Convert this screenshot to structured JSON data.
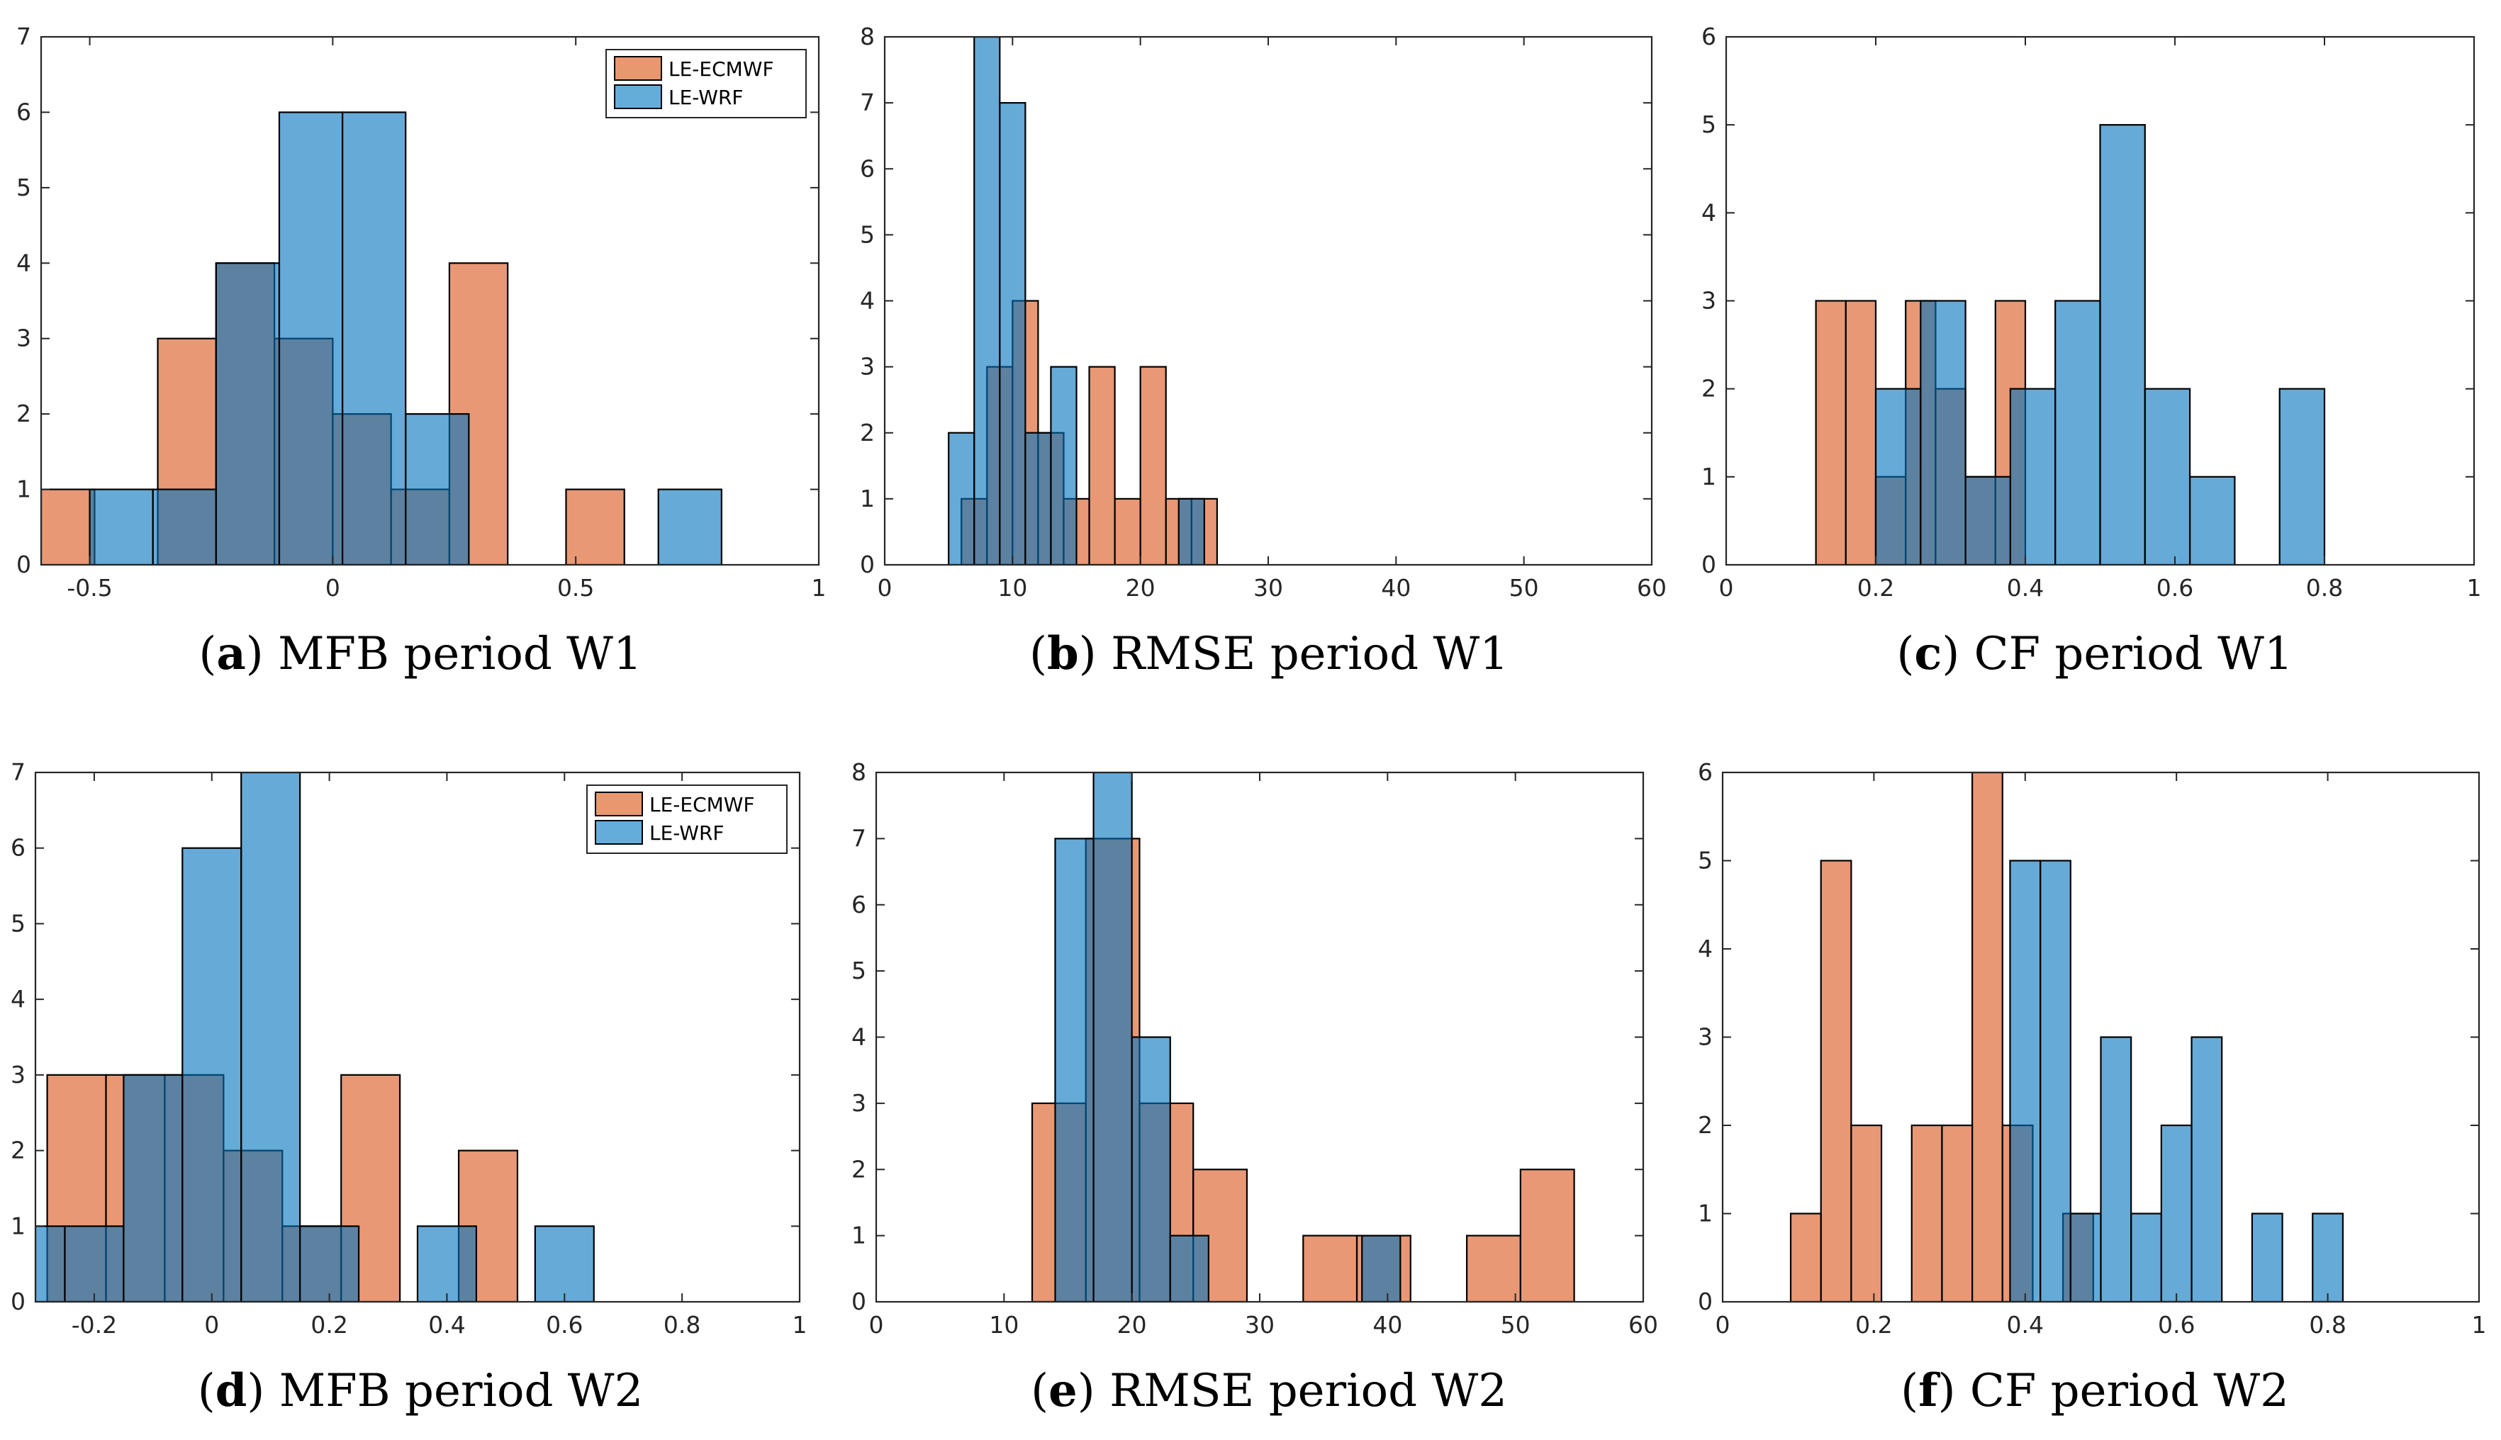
{
  "colors": {
    "ecmwf": "#d95319",
    "wrf": "#0072bd",
    "ecmwf_fill": "#e8976f",
    "wrf_fill": "#64addb",
    "overlap_fill": "#5b7f99",
    "edge": "#000000"
  },
  "legend": {
    "items": [
      "LE-ECMWF",
      "LE-WRF"
    ]
  },
  "panels": [
    {
      "id": "a",
      "caption": {
        "letter": "a",
        "text": "MFB period W1"
      },
      "legend": true,
      "chart_data": {
        "type": "histogram",
        "title": "MFB period W1",
        "xlim": [
          -0.6,
          1
        ],
        "ylim": [
          0,
          7
        ],
        "xticks": [
          -0.5,
          0,
          0.5,
          1
        ],
        "xtick_labels": [
          "-0.5",
          "0",
          "0.5",
          "1"
        ],
        "yticks": [
          0,
          1,
          2,
          3,
          4,
          5,
          6,
          7
        ],
        "ytick_labels": [
          "0",
          "1",
          "2",
          "3",
          "4",
          "5",
          "6",
          "7"
        ],
        "series": [
          {
            "name": "LE-ECMWF",
            "bins": [
              [
                -0.6,
                -0.49,
                1
              ],
              [
                -0.36,
                -0.24,
                3
              ],
              [
                -0.24,
                -0.12,
                4
              ],
              [
                -0.12,
                0.0,
                3
              ],
              [
                0.0,
                0.12,
                2
              ],
              [
                0.12,
                0.24,
                1
              ],
              [
                0.24,
                0.36,
                4
              ],
              [
                0.48,
                0.6,
                1
              ]
            ]
          },
          {
            "name": "LE-WRF",
            "bins": [
              [
                -0.5,
                -0.37,
                1
              ],
              [
                -0.37,
                -0.24,
                1
              ],
              [
                -0.24,
                -0.11,
                4
              ],
              [
                -0.11,
                0.02,
                6
              ],
              [
                0.02,
                0.15,
                6
              ],
              [
                0.15,
                0.28,
                2
              ],
              [
                0.67,
                0.8,
                1
              ]
            ]
          }
        ]
      }
    },
    {
      "id": "b",
      "caption": {
        "letter": "b",
        "text": "RMSE period W1"
      },
      "legend": false,
      "chart_data": {
        "type": "histogram",
        "title": "RMSE period W1",
        "xlim": [
          0,
          60
        ],
        "ylim": [
          0,
          8
        ],
        "xticks": [
          0,
          10,
          20,
          30,
          40,
          50,
          60
        ],
        "xtick_labels": [
          "0",
          "10",
          "20",
          "30",
          "40",
          "50",
          "60"
        ],
        "yticks": [
          0,
          1,
          2,
          3,
          4,
          5,
          6,
          7,
          8
        ],
        "ytick_labels": [
          "0",
          "1",
          "2",
          "3",
          "4",
          "5",
          "6",
          "7",
          "8"
        ],
        "series": [
          {
            "name": "LE-ECMWF",
            "bins": [
              [
                6,
                8,
                1
              ],
              [
                8,
                10,
                3
              ],
              [
                10,
                12,
                4
              ],
              [
                12,
                14,
                2
              ],
              [
                14,
                16,
                1
              ],
              [
                16,
                18,
                3
              ],
              [
                18,
                20,
                1
              ],
              [
                20,
                22,
                3
              ],
              [
                22,
                24,
                1
              ],
              [
                24,
                26,
                1
              ]
            ]
          },
          {
            "name": "LE-WRF",
            "bins": [
              [
                5,
                7,
                2
              ],
              [
                7,
                9,
                8
              ],
              [
                9,
                11,
                7
              ],
              [
                11,
                13,
                2
              ],
              [
                13,
                15,
                3
              ],
              [
                23,
                25,
                1
              ]
            ]
          }
        ]
      }
    },
    {
      "id": "c",
      "caption": {
        "letter": "c",
        "text": "CF period W1"
      },
      "legend": false,
      "chart_data": {
        "type": "histogram",
        "title": "CF period W1",
        "xlim": [
          0,
          1
        ],
        "ylim": [
          0,
          6
        ],
        "xticks": [
          0,
          0.2,
          0.4,
          0.6,
          0.8,
          1
        ],
        "xtick_labels": [
          "0",
          "0.2",
          "0.4",
          "0.6",
          "0.8",
          "1"
        ],
        "yticks": [
          0,
          1,
          2,
          3,
          4,
          5,
          6
        ],
        "ytick_labels": [
          "0",
          "1",
          "2",
          "3",
          "4",
          "5",
          "6"
        ],
        "series": [
          {
            "name": "LE-ECMWF",
            "bins": [
              [
                0.12,
                0.16,
                3
              ],
              [
                0.16,
                0.2,
                3
              ],
              [
                0.2,
                0.24,
                1
              ],
              [
                0.24,
                0.28,
                3
              ],
              [
                0.28,
                0.32,
                2
              ],
              [
                0.32,
                0.36,
                1
              ],
              [
                0.36,
                0.4,
                3
              ]
            ]
          },
          {
            "name": "LE-WRF",
            "bins": [
              [
                0.2,
                0.26,
                2
              ],
              [
                0.26,
                0.32,
                3
              ],
              [
                0.32,
                0.38,
                1
              ],
              [
                0.38,
                0.44,
                2
              ],
              [
                0.44,
                0.5,
                3
              ],
              [
                0.5,
                0.56,
                5
              ],
              [
                0.56,
                0.62,
                2
              ],
              [
                0.62,
                0.68,
                1
              ],
              [
                0.74,
                0.8,
                2
              ]
            ]
          }
        ]
      }
    },
    {
      "id": "d",
      "caption": {
        "letter": "d",
        "text": "MFB period W2"
      },
      "legend": true,
      "chart_data": {
        "type": "histogram",
        "title": "MFB period W2",
        "xlim": [
          -0.3,
          1
        ],
        "ylim": [
          0,
          7
        ],
        "xticks": [
          -0.2,
          0,
          0.2,
          0.4,
          0.6,
          0.8,
          1
        ],
        "xtick_labels": [
          "-0.2",
          "0",
          "0.2",
          "0.4",
          "0.6",
          "0.8",
          "1"
        ],
        "yticks": [
          0,
          1,
          2,
          3,
          4,
          5,
          6,
          7
        ],
        "ytick_labels": [
          "0",
          "1",
          "2",
          "3",
          "4",
          "5",
          "6",
          "7"
        ],
        "series": [
          {
            "name": "LE-ECMWF",
            "bins": [
              [
                -0.28,
                -0.18,
                3
              ],
              [
                -0.18,
                -0.08,
                3
              ],
              [
                -0.08,
                0.02,
                3
              ],
              [
                0.02,
                0.12,
                2
              ],
              [
                0.12,
                0.22,
                1
              ],
              [
                0.22,
                0.32,
                3
              ],
              [
                0.42,
                0.52,
                2
              ]
            ]
          },
          {
            "name": "LE-WRF",
            "bins": [
              [
                -0.3,
                -0.25,
                1
              ],
              [
                -0.25,
                -0.15,
                1
              ],
              [
                -0.15,
                -0.05,
                3
              ],
              [
                -0.05,
                0.05,
                6
              ],
              [
                0.05,
                0.15,
                7
              ],
              [
                0.15,
                0.25,
                1
              ],
              [
                0.35,
                0.45,
                1
              ],
              [
                0.55,
                0.65,
                1
              ]
            ]
          }
        ]
      }
    },
    {
      "id": "e",
      "caption": {
        "letter": "e",
        "text": "RMSE period W2"
      },
      "legend": false,
      "chart_data": {
        "type": "histogram",
        "title": "RMSE period W2",
        "xlim": [
          0,
          60
        ],
        "ylim": [
          0,
          8
        ],
        "xticks": [
          0,
          10,
          20,
          30,
          40,
          50,
          60
        ],
        "xtick_labels": [
          "0",
          "10",
          "20",
          "30",
          "40",
          "50",
          "60"
        ],
        "yticks": [
          0,
          1,
          2,
          3,
          4,
          5,
          6,
          7,
          8
        ],
        "ytick_labels": [
          "0",
          "1",
          "2",
          "3",
          "4",
          "5",
          "6",
          "7",
          "8"
        ],
        "series": [
          {
            "name": "LE-ECMWF",
            "bins": [
              [
                12.2,
                16.4,
                3
              ],
              [
                16.4,
                20.6,
                7
              ],
              [
                20.6,
                24.8,
                3
              ],
              [
                24.8,
                29.0,
                2
              ],
              [
                33.4,
                37.6,
                1
              ],
              [
                37.6,
                41.8,
                1
              ],
              [
                46.2,
                50.4,
                1
              ],
              [
                50.4,
                54.6,
                2
              ]
            ]
          },
          {
            "name": "LE-WRF",
            "bins": [
              [
                14,
                17,
                7
              ],
              [
                17,
                20,
                8
              ],
              [
                20,
                23,
                4
              ],
              [
                23,
                26,
                1
              ],
              [
                38,
                41,
                1
              ]
            ]
          }
        ]
      }
    },
    {
      "id": "f",
      "caption": {
        "letter": "f",
        "text": "CF period W2"
      },
      "legend": false,
      "chart_data": {
        "type": "histogram",
        "title": "CF period W2",
        "xlim": [
          0,
          1
        ],
        "ylim": [
          0,
          6
        ],
        "xticks": [
          0,
          0.2,
          0.4,
          0.6,
          0.8,
          1
        ],
        "xtick_labels": [
          "0",
          "0.2",
          "0.4",
          "0.6",
          "0.8",
          "1"
        ],
        "yticks": [
          0,
          1,
          2,
          3,
          4,
          5,
          6
        ],
        "ytick_labels": [
          "0",
          "1",
          "2",
          "3",
          "4",
          "5",
          "6"
        ],
        "series": [
          {
            "name": "LE-ECMWF",
            "bins": [
              [
                0.09,
                0.13,
                1
              ],
              [
                0.13,
                0.17,
                5
              ],
              [
                0.17,
                0.21,
                2
              ],
              [
                0.25,
                0.29,
                2
              ],
              [
                0.29,
                0.33,
                2
              ],
              [
                0.33,
                0.37,
                6
              ],
              [
                0.37,
                0.41,
                2
              ],
              [
                0.45,
                0.49,
                1
              ]
            ]
          },
          {
            "name": "LE-WRF",
            "bins": [
              [
                0.38,
                0.42,
                5
              ],
              [
                0.42,
                0.46,
                5
              ],
              [
                0.46,
                0.5,
                1
              ],
              [
                0.5,
                0.54,
                3
              ],
              [
                0.54,
                0.58,
                1
              ],
              [
                0.58,
                0.62,
                2
              ],
              [
                0.62,
                0.66,
                3
              ],
              [
                0.7,
                0.74,
                1
              ],
              [
                0.78,
                0.82,
                1
              ]
            ]
          }
        ]
      }
    }
  ]
}
